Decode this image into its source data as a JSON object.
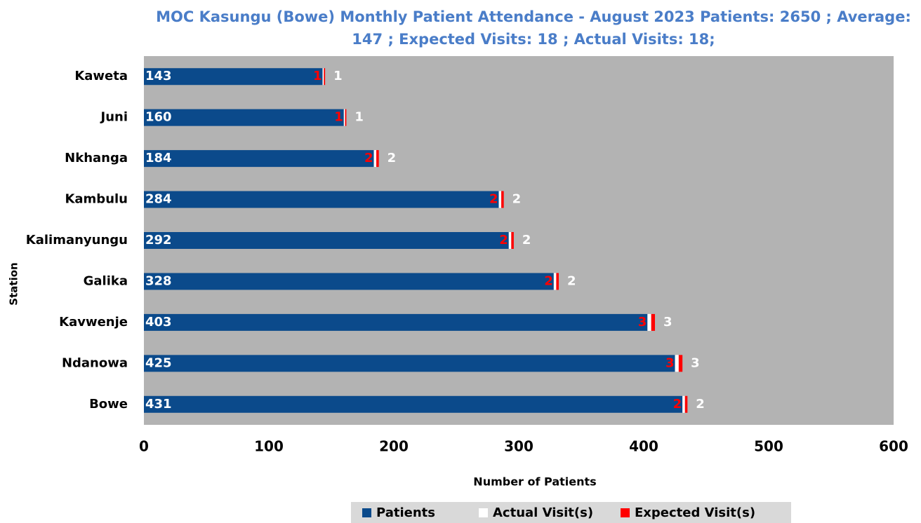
{
  "chart_data": {
    "type": "stacked_barh",
    "title": "MOC Kasungu (Bowe) Monthly Patient Attendance - August 2023 Patients: 2650 ; Average: 147 ; Expected Visits: 18 ; Actual Visits: 18;",
    "x_label": "Number of Patients",
    "y_label": "Station",
    "categories": [
      "Kaweta",
      "Juni",
      "Nkhanga",
      "Kambulu",
      "Kalimanyungu",
      "Galika",
      "Kavwenje",
      "Ndanowa",
      "Bowe"
    ],
    "series": [
      {
        "name": "Patients",
        "color": "#0b4a8b",
        "label_color": "#ffffff",
        "values": [
          143,
          160,
          184,
          284,
          292,
          328,
          403,
          425,
          431
        ]
      },
      {
        "name": "Actual Visit(s)",
        "color": "#ffffff",
        "label_color": "#ffffff",
        "values": [
          1,
          1,
          2,
          2,
          2,
          2,
          3,
          3,
          2
        ]
      },
      {
        "name": "Expected Visit(s)",
        "color": "#ff0000",
        "label_color": "#ff0000",
        "values": [
          1,
          1,
          2,
          2,
          2,
          2,
          3,
          3,
          2
        ]
      }
    ],
    "xlim": [
      0,
      600
    ],
    "xticks": [
      0,
      100,
      200,
      300,
      400,
      500,
      600
    ],
    "plot_background": "#b3b3b3",
    "legend": "bottom"
  }
}
